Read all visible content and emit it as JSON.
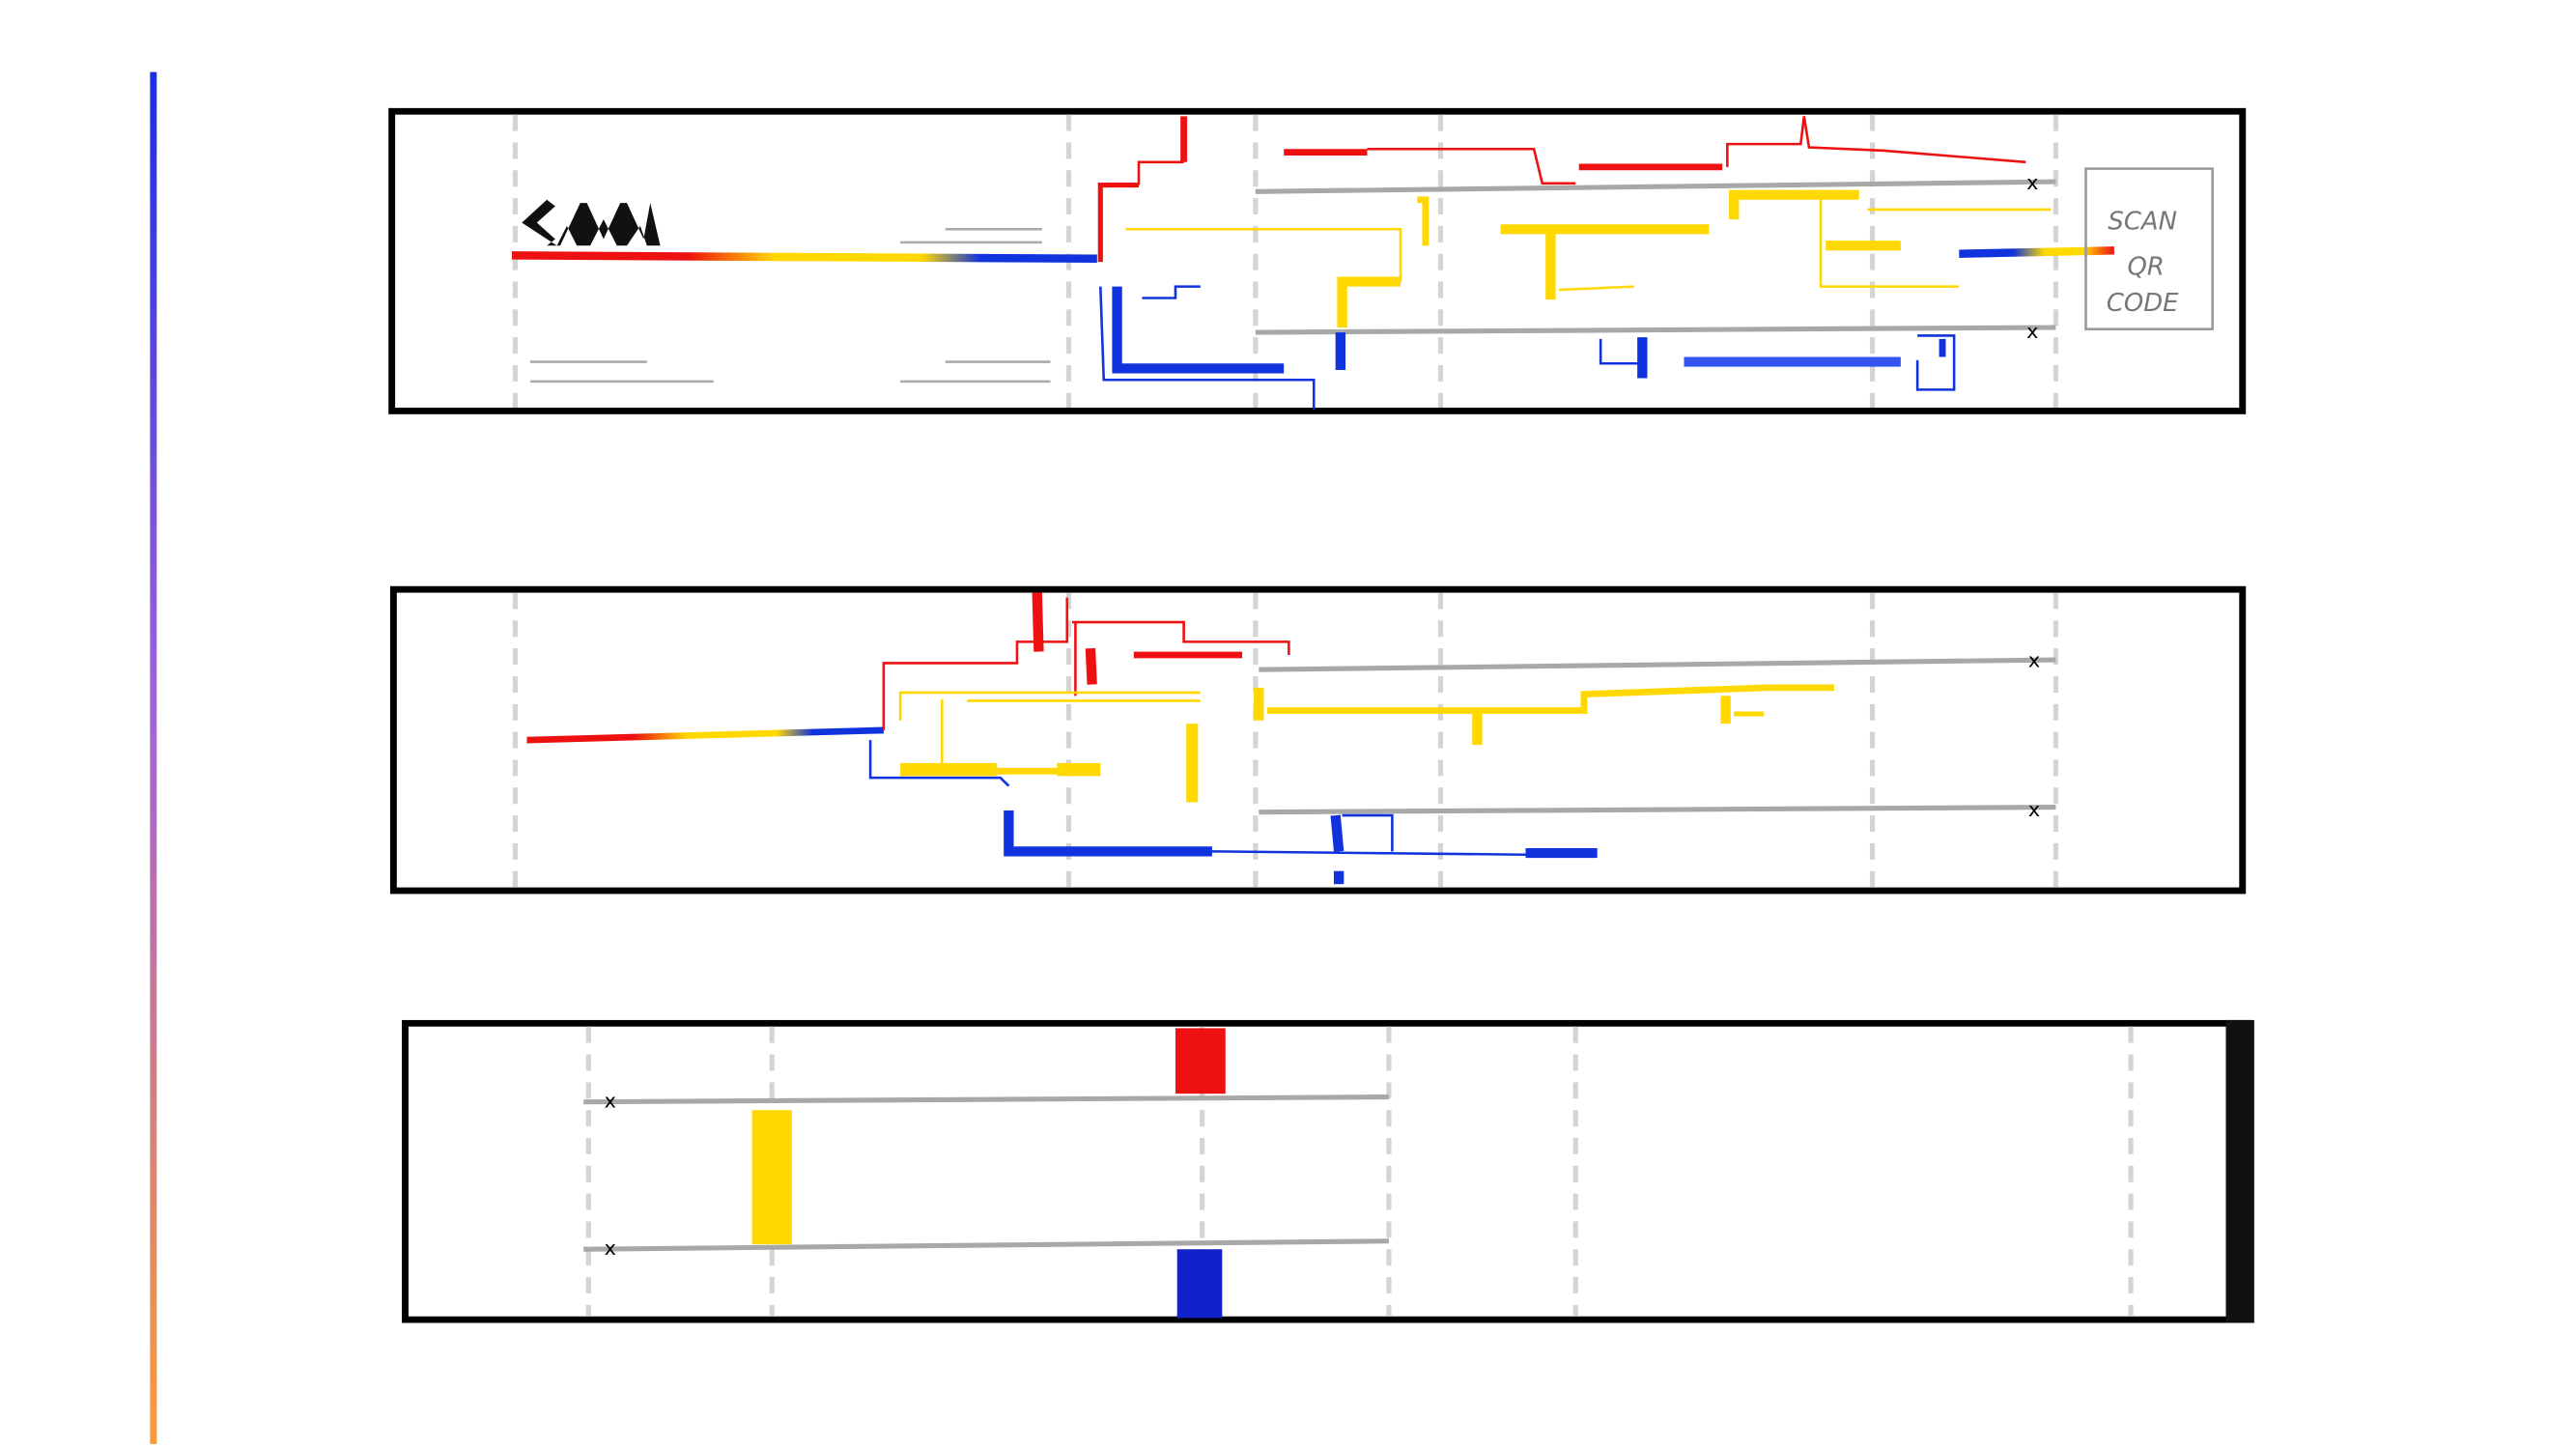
{
  "panels": [
    {
      "qr_label": [
        "SCAN",
        "QR",
        "CODE"
      ],
      "markers": [
        "x",
        "x"
      ]
    },
    {
      "markers": [
        "x",
        "x"
      ]
    },
    {
      "markers": [
        "x",
        "x"
      ]
    }
  ]
}
